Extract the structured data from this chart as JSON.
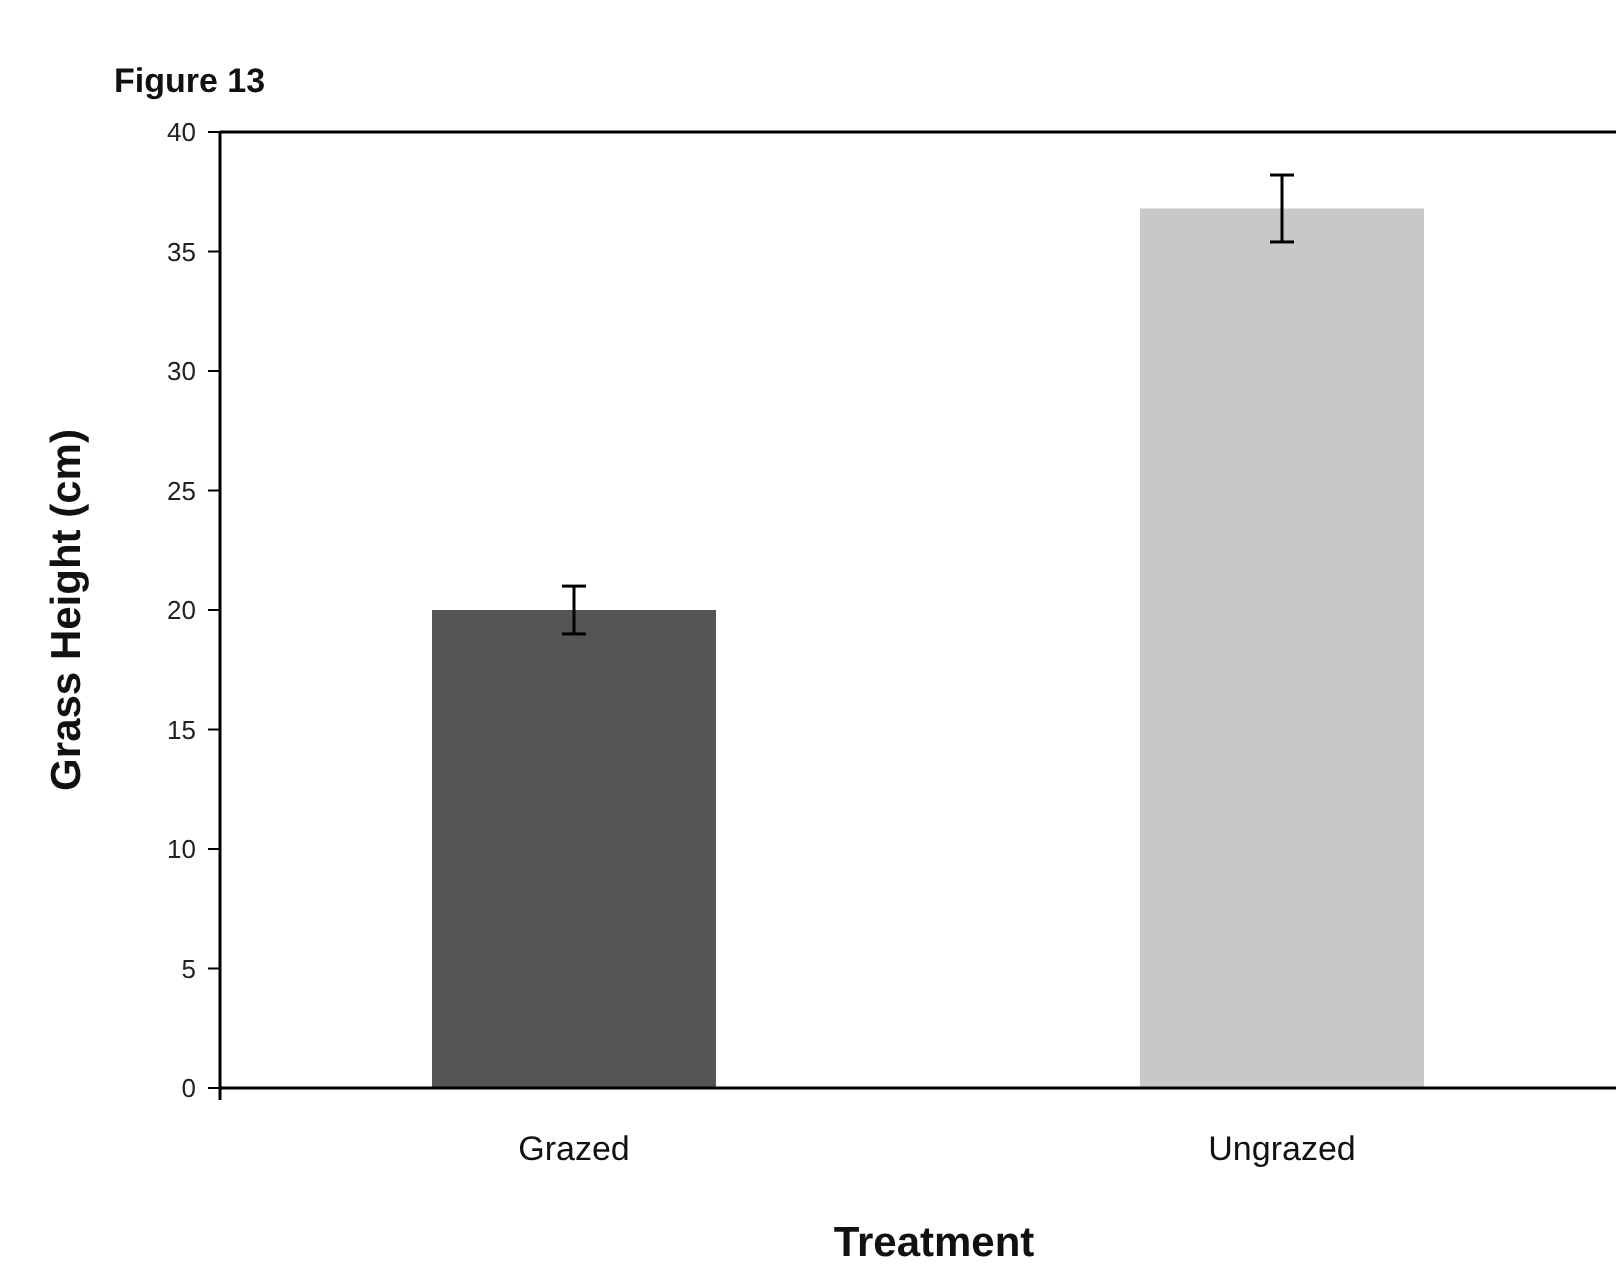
{
  "chart_data": {
    "type": "bar",
    "title": "Figure 13",
    "xlabel": "Treatment",
    "ylabel": "Grass Height (cm)",
    "categories": [
      "Grazed",
      "Ungrazed"
    ],
    "values": [
      20,
      36.8
    ],
    "colors": [
      "#555555",
      "#c8c8c8"
    ],
    "errors": [
      1,
      1.4
    ],
    "ylim": [
      0,
      40
    ],
    "yticks": [
      0,
      5,
      10,
      15,
      20,
      25,
      30,
      35,
      40
    ],
    "grid": false
  }
}
